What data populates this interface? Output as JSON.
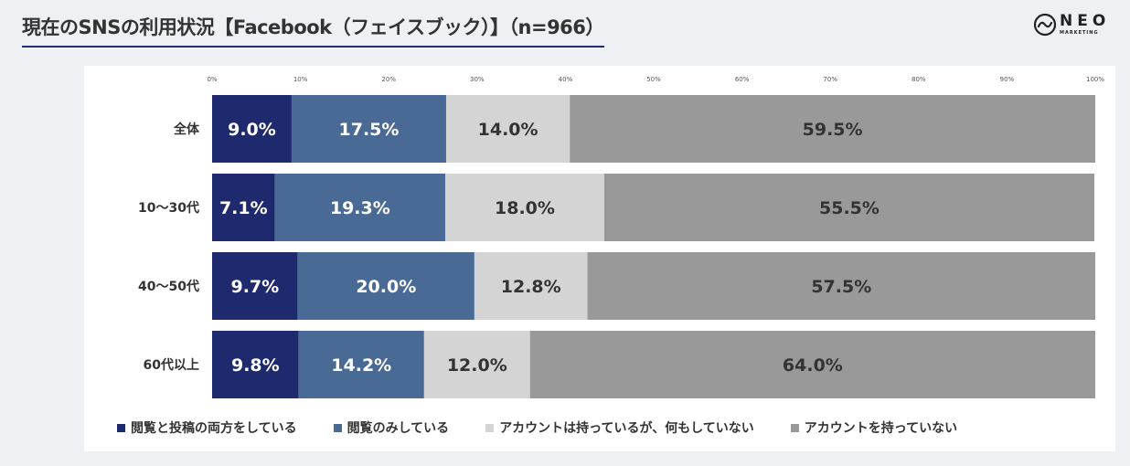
{
  "header": {
    "title": "現在のSNSの利用状況【Facebook（フェイスブック）】（n=966）"
  },
  "logo": {
    "main": "NEO",
    "sub": "MARKETING",
    "icon": "wave-circle-icon"
  },
  "chart_data": {
    "type": "bar",
    "orientation": "horizontal",
    "stacked": true,
    "title": "",
    "xlabel": "",
    "ylabel": "",
    "xlim": [
      0,
      100
    ],
    "x_ticks": [
      "0%",
      "10%",
      "20%",
      "30%",
      "40%",
      "50%",
      "60%",
      "70%",
      "80%",
      "90%",
      "100%"
    ],
    "legend_position": "bottom",
    "categories": [
      "全体",
      "10～30代",
      "40～50代",
      "60代以上"
    ],
    "series": [
      {
        "name": "閲覧と投稿の両方をしている",
        "color": "#1f2a6e",
        "label_color": "#ffffff",
        "values": [
          9.0,
          7.1,
          9.7,
          9.8
        ],
        "labels": [
          "9.0%",
          "7.1%",
          "9.7%",
          "9.8%"
        ]
      },
      {
        "name": "閲覧のみしている",
        "color": "#4a6a96",
        "label_color": "#ffffff",
        "values": [
          17.5,
          19.3,
          20.0,
          14.2
        ],
        "labels": [
          "17.5%",
          "19.3%",
          "20.0%",
          "14.2%"
        ]
      },
      {
        "name": "アカウントは持っているが、何もしていない",
        "color": "#d4d4d4",
        "label_color": "#333333",
        "values": [
          14.0,
          18.0,
          12.8,
          12.0
        ],
        "labels": [
          "14.0%",
          "18.0%",
          "12.8%",
          "12.0%"
        ]
      },
      {
        "name": "アカウントを持っていない",
        "color": "#999999",
        "label_color": "#333333",
        "values": [
          59.5,
          55.5,
          57.5,
          64.0
        ],
        "labels": [
          "59.5%",
          "55.5%",
          "57.5%",
          "64.0%"
        ]
      }
    ]
  }
}
